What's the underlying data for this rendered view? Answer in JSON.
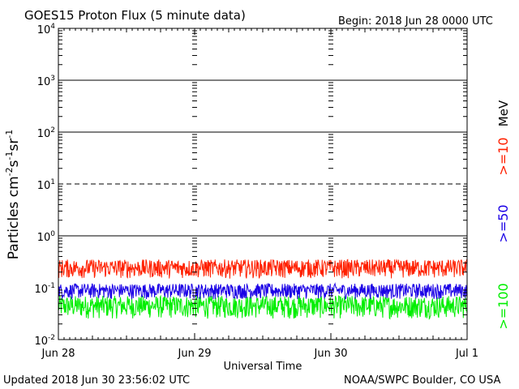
{
  "chart_data": {
    "type": "line",
    "title": "GOES15 Proton Flux (5 minute data)",
    "begin_label": "Begin: 2018 Jun 28 0000 UTC",
    "ylabel": "Particles cm⁻²s⁻¹sr⁻¹",
    "ylabel_parts": {
      "base": "Particles cm",
      "e1": "-2",
      "s": "s",
      "e2": "-1",
      "sr": "sr",
      "e3": "-1"
    },
    "xlabel": "Universal Time",
    "y_scale": "log",
    "ylim": [
      0.01,
      10000
    ],
    "y_ticks": [
      {
        "base": "10",
        "exp": "4"
      },
      {
        "base": "10",
        "exp": "3"
      },
      {
        "base": "10",
        "exp": "2"
      },
      {
        "base": "10",
        "exp": "1"
      },
      {
        "base": "10",
        "exp": "0"
      },
      {
        "base": "10",
        "exp": "-1"
      },
      {
        "base": "10",
        "exp": "-2"
      }
    ],
    "x_ticks": [
      "Jun 28",
      "Jun 29",
      "Jun 30",
      "Jul 1"
    ],
    "x_range_days": [
      "2018-06-28",
      "2018-07-01"
    ],
    "threshold_lines": [
      {
        "value": 1000,
        "style": "solid"
      },
      {
        "value": 100,
        "style": "solid"
      },
      {
        "value": 10,
        "style": "dashed"
      },
      {
        "value": 1,
        "style": "solid"
      }
    ],
    "right_labels": {
      "unit": "MeV",
      "s10": ">=10",
      "s50": ">=50",
      "s100": ">=100"
    },
    "series": [
      {
        "name": ">=10",
        "unit": "MeV",
        "color": "#ff2000",
        "typical_range": [
          0.15,
          0.35
        ]
      },
      {
        "name": ">=50",
        "unit": "MeV",
        "color": "#1a00e6",
        "typical_range": [
          0.06,
          0.12
        ]
      },
      {
        "name": ">=100",
        "unit": "MeV",
        "color": "#00ee00",
        "typical_range": [
          0.025,
          0.07
        ]
      }
    ],
    "grid": false
  },
  "footer": {
    "updated": "Updated 2018 Jun 30 23:56:02 UTC",
    "source": "NOAA/SWPC Boulder, CO USA"
  }
}
